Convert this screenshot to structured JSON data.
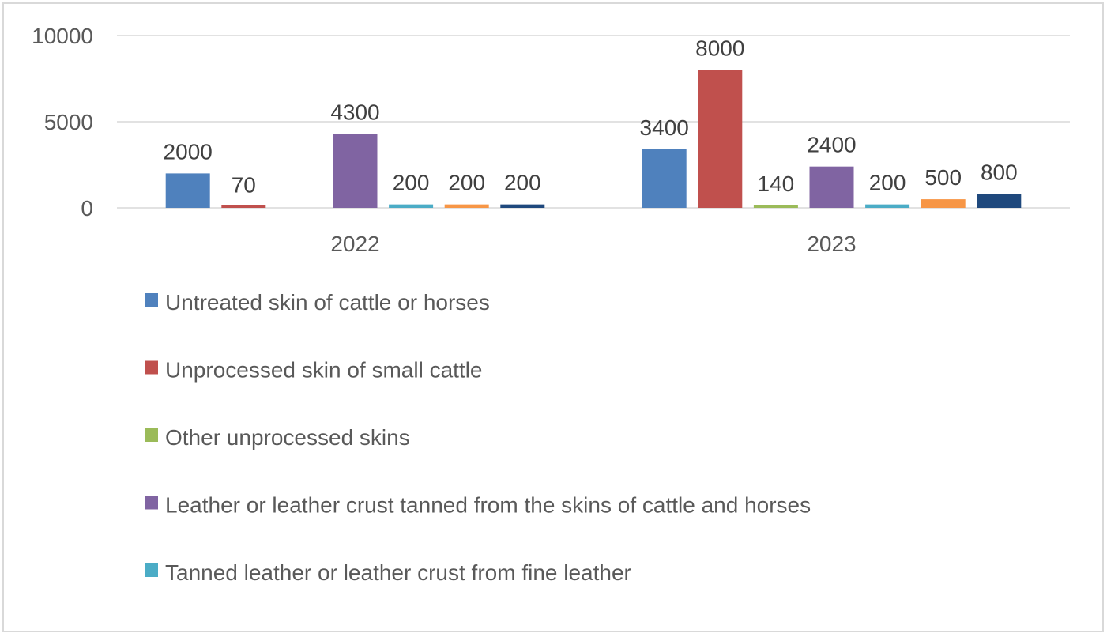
{
  "chart_data": {
    "type": "bar",
    "title": "",
    "xlabel": "",
    "ylabel": "",
    "ylim": [
      0,
      10000
    ],
    "yticks": [
      0,
      5000,
      10000
    ],
    "grid": true,
    "legend_position": "bottom",
    "categories": [
      "2022",
      "2023"
    ],
    "series": [
      {
        "name": "Untreated skin of cattle or horses",
        "color": "#4f81bd",
        "values": [
          2000,
          3400
        ],
        "labels": [
          "2000",
          "3400"
        ]
      },
      {
        "name": "Unprocessed skin of small cattle",
        "color": "#c0504d",
        "values": [
          70,
          8000
        ],
        "labels": [
          "70",
          "8000"
        ]
      },
      {
        "name": "Other unprocessed skins",
        "color": "#9bbb59",
        "values": [
          null,
          140
        ],
        "labels": [
          "",
          "140"
        ]
      },
      {
        "name": "Leather or leather crust tanned from the skins of cattle and horses",
        "color": "#8064a2",
        "values": [
          4300,
          2400
        ],
        "labels": [
          "4300",
          "2400"
        ]
      },
      {
        "name": "Tanned leather or leather crust from fine leather",
        "color": "#4bacc6",
        "values": [
          200,
          200
        ],
        "labels": [
          "200",
          "200"
        ]
      },
      {
        "name": "",
        "color": "#f79646",
        "values": [
          200,
          500
        ],
        "labels": [
          "200",
          "500"
        ]
      },
      {
        "name": "",
        "color": "#1f497d",
        "values": [
          200,
          800
        ],
        "labels": [
          "200",
          "800"
        ]
      }
    ]
  }
}
